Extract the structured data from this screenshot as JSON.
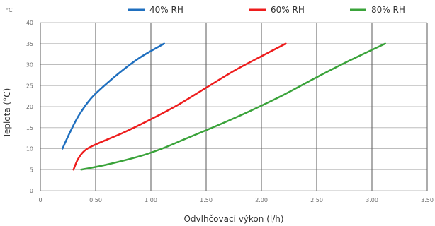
{
  "chart_data": {
    "type": "line",
    "ylabel": "Teplota (°C)",
    "xlabel": "Odvlhčovací výkon (l/h)",
    "y_unit": "°C",
    "xlim": [
      0,
      3.5
    ],
    "ylim": [
      0,
      40
    ],
    "x_ticks": [
      "0",
      "0.50",
      "1.00",
      "1.50",
      "2.00",
      "2.50",
      "3.00",
      "3.50"
    ],
    "y_ticks": [
      "0",
      "5",
      "10",
      "15",
      "20",
      "25",
      "30",
      "35",
      "40"
    ],
    "grid": {
      "vertical": true,
      "horizontal": true
    },
    "legend_position": "top",
    "series": [
      {
        "name": "40% RH",
        "color": "#1f6fbf",
        "points": [
          [
            0.2,
            10
          ],
          [
            0.27,
            14
          ],
          [
            0.35,
            18
          ],
          [
            0.46,
            22
          ],
          [
            0.6,
            25.5
          ],
          [
            0.76,
            29
          ],
          [
            0.92,
            32
          ],
          [
            1.12,
            35
          ]
        ]
      },
      {
        "name": "60% RH",
        "color": "#ee1c1c",
        "points": [
          [
            0.3,
            5
          ],
          [
            0.34,
            7.5
          ],
          [
            0.4,
            9.5
          ],
          [
            0.5,
            11
          ],
          [
            0.75,
            13.8
          ],
          [
            1.0,
            17
          ],
          [
            1.25,
            20.5
          ],
          [
            1.5,
            24.5
          ],
          [
            1.75,
            28.5
          ],
          [
            2.0,
            32
          ],
          [
            2.22,
            35
          ]
        ]
      },
      {
        "name": "80% RH",
        "color": "#3aa33a",
        "points": [
          [
            0.37,
            5
          ],
          [
            0.6,
            6.2
          ],
          [
            0.9,
            8.2
          ],
          [
            1.1,
            10
          ],
          [
            1.3,
            12.2
          ],
          [
            1.6,
            15.5
          ],
          [
            1.9,
            19
          ],
          [
            2.2,
            22.8
          ],
          [
            2.5,
            27
          ],
          [
            2.8,
            31
          ],
          [
            3.12,
            35
          ]
        ]
      }
    ]
  }
}
